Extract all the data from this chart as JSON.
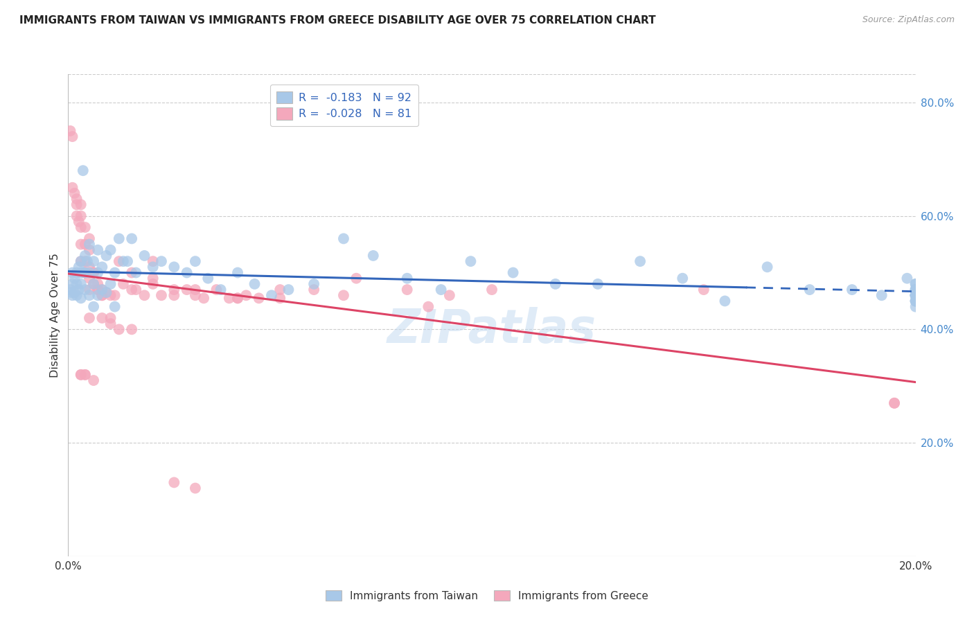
{
  "title": "IMMIGRANTS FROM TAIWAN VS IMMIGRANTS FROM GREECE DISABILITY AGE OVER 75 CORRELATION CHART",
  "source": "Source: ZipAtlas.com",
  "ylabel": "Disability Age Over 75",
  "taiwan_R": -0.183,
  "taiwan_N": 92,
  "greece_R": -0.028,
  "greece_N": 81,
  "legend_taiwan": "Immigrants from Taiwan",
  "legend_greece": "Immigrants from Greece",
  "taiwan_color": "#a8c8e8",
  "greece_color": "#f4a8bc",
  "taiwan_line_color": "#3366bb",
  "greece_line_color": "#dd4466",
  "x_min": 0.0,
  "x_max": 0.2,
  "y_min": 0.0,
  "y_max": 0.85,
  "y_ticks_right": [
    0.2,
    0.4,
    0.6,
    0.8
  ],
  "y_tick_labels_right": [
    "20.0%",
    "40.0%",
    "60.0%",
    "80.0%"
  ],
  "taiwan_x": [
    0.0005,
    0.0008,
    0.001,
    0.001,
    0.001,
    0.0015,
    0.0015,
    0.002,
    0.002,
    0.002,
    0.0025,
    0.0025,
    0.003,
    0.003,
    0.003,
    0.003,
    0.0035,
    0.0035,
    0.004,
    0.004,
    0.004,
    0.0045,
    0.005,
    0.005,
    0.005,
    0.006,
    0.006,
    0.006,
    0.007,
    0.007,
    0.007,
    0.008,
    0.008,
    0.009,
    0.009,
    0.01,
    0.01,
    0.011,
    0.011,
    0.012,
    0.013,
    0.014,
    0.015,
    0.016,
    0.018,
    0.02,
    0.022,
    0.025,
    0.028,
    0.03,
    0.033,
    0.036,
    0.04,
    0.044,
    0.048,
    0.052,
    0.058,
    0.065,
    0.072,
    0.08,
    0.088,
    0.095,
    0.105,
    0.115,
    0.125,
    0.135,
    0.145,
    0.155,
    0.165,
    0.175,
    0.185,
    0.192,
    0.198,
    0.2,
    0.2,
    0.2,
    0.2,
    0.2,
    0.2,
    0.2,
    0.2,
    0.2,
    0.2,
    0.2,
    0.2,
    0.2,
    0.2,
    0.2,
    0.2,
    0.2,
    0.2,
    0.2
  ],
  "taiwan_y": [
    0.47,
    0.465,
    0.5,
    0.48,
    0.46,
    0.49,
    0.465,
    0.5,
    0.48,
    0.46,
    0.51,
    0.47,
    0.52,
    0.5,
    0.48,
    0.455,
    0.68,
    0.5,
    0.53,
    0.5,
    0.47,
    0.52,
    0.55,
    0.5,
    0.46,
    0.52,
    0.48,
    0.44,
    0.54,
    0.5,
    0.46,
    0.51,
    0.47,
    0.53,
    0.465,
    0.54,
    0.48,
    0.5,
    0.44,
    0.56,
    0.52,
    0.52,
    0.56,
    0.5,
    0.53,
    0.51,
    0.52,
    0.51,
    0.5,
    0.52,
    0.49,
    0.47,
    0.5,
    0.48,
    0.46,
    0.47,
    0.48,
    0.56,
    0.53,
    0.49,
    0.47,
    0.52,
    0.5,
    0.48,
    0.48,
    0.52,
    0.49,
    0.45,
    0.51,
    0.47,
    0.47,
    0.46,
    0.49,
    0.47,
    0.46,
    0.44,
    0.47,
    0.48,
    0.46,
    0.47,
    0.46,
    0.48,
    0.46,
    0.47,
    0.46,
    0.45,
    0.46,
    0.45,
    0.46,
    0.45,
    0.46,
    0.45
  ],
  "greece_x": [
    0.0005,
    0.001,
    0.001,
    0.0015,
    0.002,
    0.002,
    0.0025,
    0.003,
    0.003,
    0.003,
    0.004,
    0.004,
    0.004,
    0.005,
    0.005,
    0.005,
    0.006,
    0.006,
    0.007,
    0.007,
    0.008,
    0.008,
    0.009,
    0.01,
    0.011,
    0.012,
    0.013,
    0.015,
    0.016,
    0.018,
    0.02,
    0.022,
    0.025,
    0.028,
    0.03,
    0.032,
    0.035,
    0.038,
    0.04,
    0.042,
    0.045,
    0.05,
    0.058,
    0.068,
    0.08,
    0.09,
    0.1,
    0.15,
    0.195,
    0.002,
    0.003,
    0.003,
    0.004,
    0.005,
    0.005,
    0.006,
    0.007,
    0.008,
    0.003,
    0.004,
    0.005,
    0.01,
    0.012,
    0.015,
    0.02,
    0.025,
    0.03,
    0.003,
    0.004,
    0.006,
    0.008,
    0.01,
    0.015,
    0.02,
    0.025,
    0.03,
    0.04,
    0.05,
    0.065,
    0.085,
    0.195
  ],
  "greece_y": [
    0.75,
    0.74,
    0.65,
    0.64,
    0.63,
    0.6,
    0.59,
    0.58,
    0.55,
    0.52,
    0.55,
    0.52,
    0.5,
    0.51,
    0.49,
    0.47,
    0.5,
    0.48,
    0.48,
    0.47,
    0.47,
    0.46,
    0.465,
    0.46,
    0.46,
    0.52,
    0.48,
    0.47,
    0.47,
    0.46,
    0.52,
    0.46,
    0.46,
    0.47,
    0.46,
    0.455,
    0.47,
    0.455,
    0.455,
    0.46,
    0.455,
    0.47,
    0.47,
    0.49,
    0.47,
    0.46,
    0.47,
    0.47,
    0.27,
    0.62,
    0.62,
    0.6,
    0.58,
    0.56,
    0.54,
    0.5,
    0.47,
    0.46,
    0.32,
    0.32,
    0.42,
    0.41,
    0.4,
    0.5,
    0.48,
    0.47,
    0.47,
    0.32,
    0.32,
    0.31,
    0.42,
    0.42,
    0.4,
    0.49,
    0.13,
    0.12,
    0.455,
    0.455,
    0.46,
    0.44,
    0.27
  ],
  "watermark": "ZIPatlas",
  "background_color": "#ffffff",
  "grid_color": "#cccccc"
}
